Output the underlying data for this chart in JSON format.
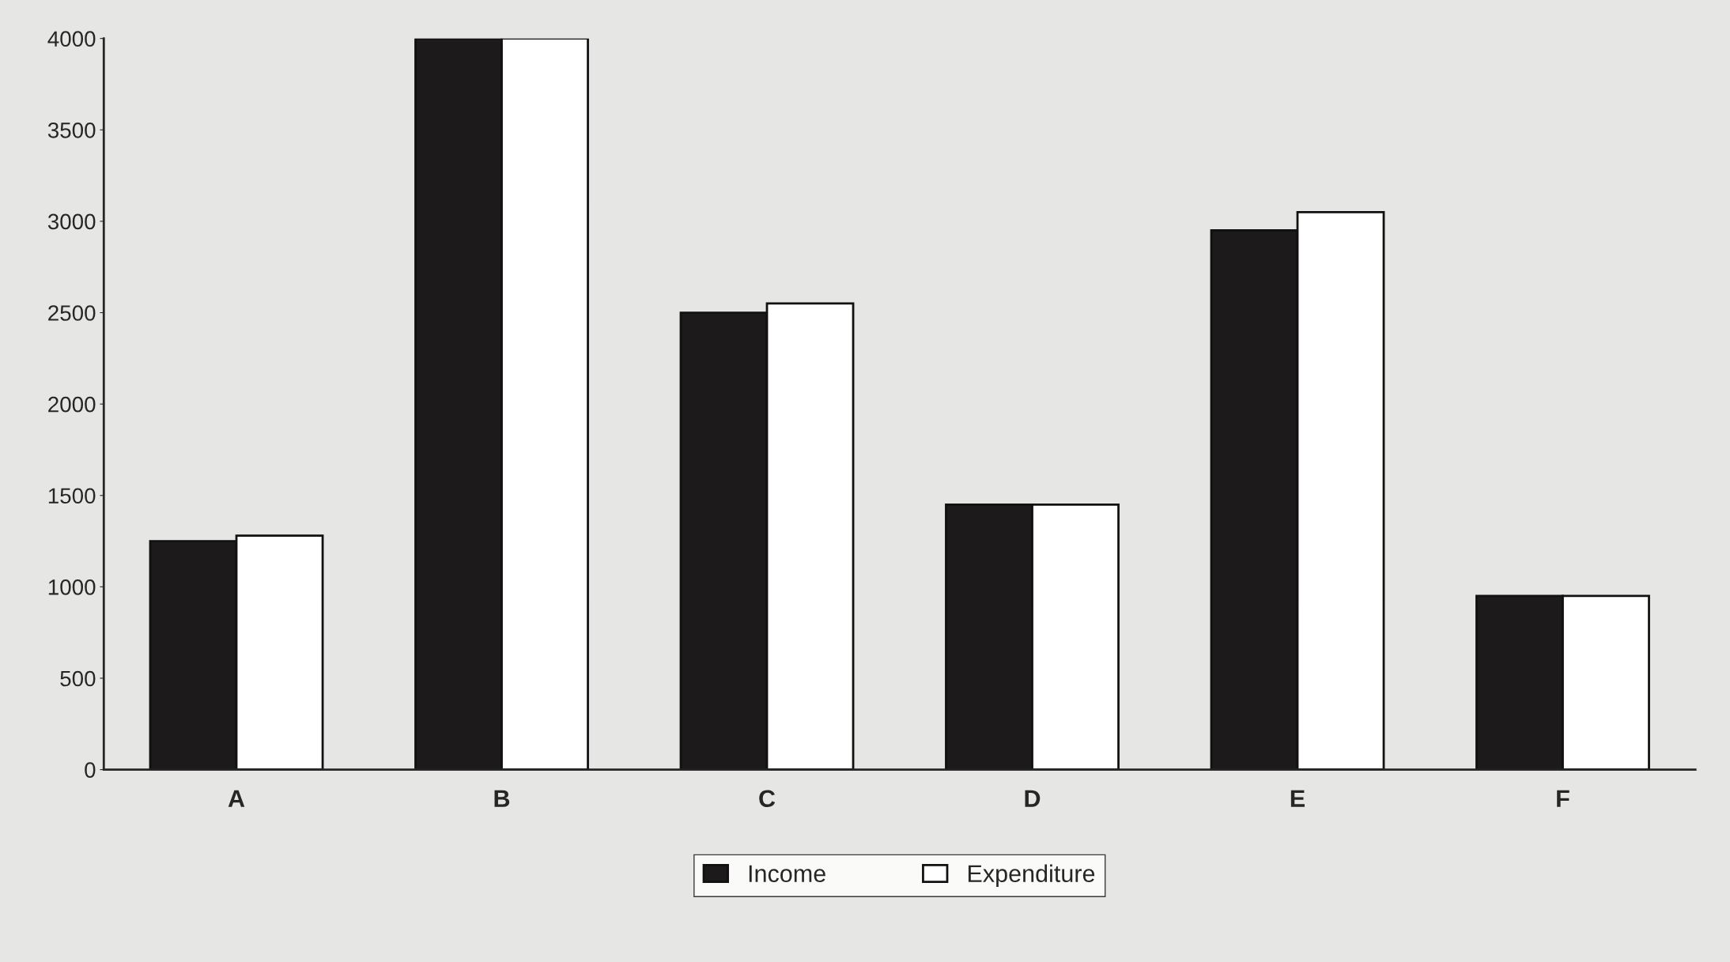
{
  "chart_data": {
    "type": "bar",
    "categories": [
      "A",
      "B",
      "C",
      "D",
      "E",
      "F"
    ],
    "series": [
      {
        "name": "Income",
        "color": "#1c1a1a",
        "values": [
          1250,
          4000,
          2500,
          1450,
          2950,
          950
        ]
      },
      {
        "name": "Expenditure",
        "color": "#ffffff",
        "values": [
          1280,
          4000,
          2550,
          1450,
          3050,
          950
        ]
      }
    ],
    "ylim": [
      0,
      4000
    ],
    "yticks": [
      0,
      500,
      1000,
      1500,
      2000,
      2500,
      3000,
      3500,
      4000
    ],
    "grid": false,
    "legend": "bottom"
  }
}
